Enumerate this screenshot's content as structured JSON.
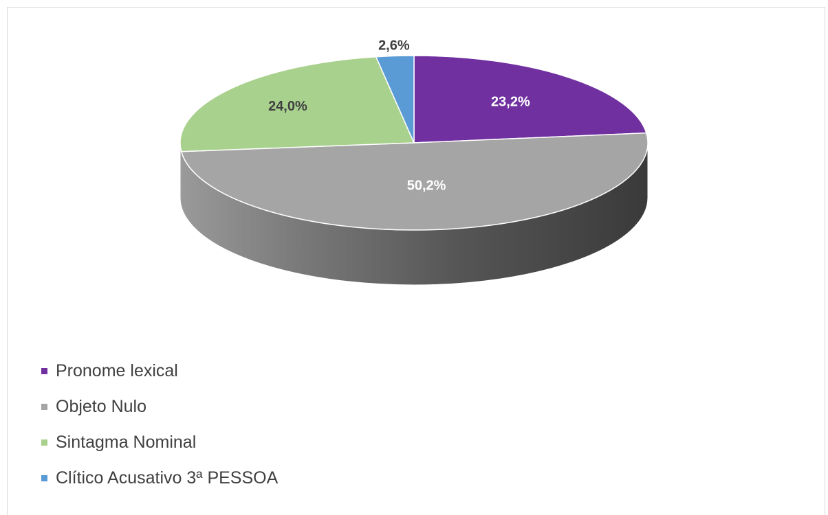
{
  "chart_data": {
    "type": "pie",
    "title": "",
    "categories": [
      "Pronome lexical",
      "Objeto Nulo",
      "Sintagma Nominal",
      "Clítico Acusativo 3ª PESSOA"
    ],
    "values": [
      23.2,
      50.2,
      24.0,
      2.6
    ],
    "labels": [
      "23,2%",
      "50,2%",
      "24,0%",
      "2,6%"
    ],
    "colors": [
      "#7030a0",
      "#a5a5a5",
      "#a9d18e",
      "#5b9bd5"
    ],
    "label_colors": [
      "#ffffff",
      "#ffffff",
      "#404040",
      "#404040"
    ],
    "three_d": true,
    "start_angle_deg": 0,
    "direction": "clockwise",
    "legend_position": "bottom-left"
  },
  "legend": {
    "items": [
      {
        "label": "Pronome lexical",
        "color": "#7030a0"
      },
      {
        "label": "Objeto Nulo",
        "color": "#a5a5a5"
      },
      {
        "label": "Sintagma Nominal",
        "color": "#a9d18e"
      },
      {
        "label": "Clítico Acusativo 3ª PESSOA",
        "color": "#5b9bd5"
      }
    ]
  }
}
